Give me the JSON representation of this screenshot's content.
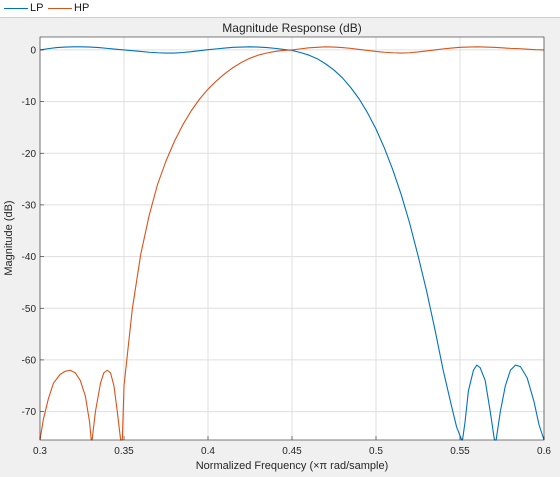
{
  "chart_data": {
    "type": "line",
    "title": "Magnitude Response (dB)",
    "xlabel": "Normalized Frequency (×π rad/sample)",
    "ylabel": "Magnitude (dB)",
    "xlim": [
      0.3,
      0.6
    ],
    "ylim": [
      -75.5,
      2.5
    ],
    "x_ticks": [
      0.3,
      0.35,
      0.4,
      0.45,
      0.5,
      0.55,
      0.6
    ],
    "x_tick_labels": [
      "0.3",
      "0.35",
      "0.4",
      "0.45",
      "0.5",
      "0.55",
      "0.6"
    ],
    "y_ticks": [
      0,
      -10,
      -20,
      -30,
      -40,
      -50,
      -60,
      -70
    ],
    "y_tick_labels": [
      "0",
      "-10",
      "-20",
      "-30",
      "-40",
      "-50",
      "-60",
      "-70"
    ],
    "grid": true,
    "legend": "top-left",
    "series": [
      {
        "name": "LP",
        "color": "#0072bd",
        "points": [
          [
            0.3,
            0.0
          ],
          [
            0.305,
            0.25
          ],
          [
            0.31,
            0.45
          ],
          [
            0.315,
            0.55
          ],
          [
            0.32,
            0.6
          ],
          [
            0.325,
            0.6
          ],
          [
            0.33,
            0.55
          ],
          [
            0.335,
            0.45
          ],
          [
            0.34,
            0.3
          ],
          [
            0.345,
            0.15
          ],
          [
            0.35,
            0.0
          ],
          [
            0.355,
            -0.15
          ],
          [
            0.36,
            -0.3
          ],
          [
            0.365,
            -0.45
          ],
          [
            0.37,
            -0.55
          ],
          [
            0.375,
            -0.6
          ],
          [
            0.38,
            -0.6
          ],
          [
            0.385,
            -0.5
          ],
          [
            0.39,
            -0.35
          ],
          [
            0.395,
            -0.15
          ],
          [
            0.4,
            0.05
          ],
          [
            0.405,
            0.2
          ],
          [
            0.41,
            0.35
          ],
          [
            0.415,
            0.5
          ],
          [
            0.42,
            0.55
          ],
          [
            0.425,
            0.6
          ],
          [
            0.43,
            0.55
          ],
          [
            0.435,
            0.45
          ],
          [
            0.44,
            0.3
          ],
          [
            0.445,
            0.1
          ],
          [
            0.45,
            -0.1
          ],
          [
            0.455,
            -0.5
          ],
          [
            0.46,
            -1.0
          ],
          [
            0.465,
            -1.7
          ],
          [
            0.47,
            -2.7
          ],
          [
            0.475,
            -3.9
          ],
          [
            0.48,
            -5.4
          ],
          [
            0.485,
            -7.3
          ],
          [
            0.49,
            -9.5
          ],
          [
            0.495,
            -12.2
          ],
          [
            0.5,
            -15.3
          ],
          [
            0.505,
            -19.0
          ],
          [
            0.51,
            -23.2
          ],
          [
            0.515,
            -28.0
          ],
          [
            0.52,
            -33.5
          ],
          [
            0.525,
            -39.8
          ],
          [
            0.53,
            -46.5
          ],
          [
            0.535,
            -54.0
          ],
          [
            0.54,
            -62.0
          ],
          [
            0.545,
            -69.0
          ],
          [
            0.548,
            -73.0
          ],
          [
            0.551,
            -75.5
          ],
          [
            0.5515,
            -75.5
          ],
          [
            0.553,
            -72.0
          ],
          [
            0.555,
            -66.0
          ],
          [
            0.558,
            -62.0
          ],
          [
            0.56,
            -61.0
          ],
          [
            0.562,
            -61.5
          ],
          [
            0.565,
            -64.0
          ],
          [
            0.568,
            -70.0
          ],
          [
            0.5705,
            -75.5
          ],
          [
            0.5715,
            -75.5
          ],
          [
            0.574,
            -70.0
          ],
          [
            0.577,
            -65.0
          ],
          [
            0.58,
            -62.0
          ],
          [
            0.583,
            -61.0
          ],
          [
            0.586,
            -61.3
          ],
          [
            0.59,
            -63.5
          ],
          [
            0.594,
            -68.0
          ],
          [
            0.597,
            -72.5
          ],
          [
            0.6,
            -75.5
          ]
        ]
      },
      {
        "name": "HP",
        "color": "#d95319",
        "points": [
          [
            0.3,
            -75.5
          ],
          [
            0.302,
            -71.5
          ],
          [
            0.305,
            -67.5
          ],
          [
            0.308,
            -64.5
          ],
          [
            0.312,
            -62.8
          ],
          [
            0.315,
            -62.2
          ],
          [
            0.318,
            -62.0
          ],
          [
            0.321,
            -62.5
          ],
          [
            0.324,
            -64.0
          ],
          [
            0.327,
            -67.0
          ],
          [
            0.3295,
            -72.0
          ],
          [
            0.3305,
            -75.5
          ],
          [
            0.331,
            -75.5
          ],
          [
            0.333,
            -70.0
          ],
          [
            0.336,
            -64.5
          ],
          [
            0.338,
            -62.5
          ],
          [
            0.34,
            -62.0
          ],
          [
            0.342,
            -62.5
          ],
          [
            0.344,
            -65.0
          ],
          [
            0.346,
            -70.0
          ],
          [
            0.348,
            -75.5
          ],
          [
            0.349,
            -75.5
          ],
          [
            0.35,
            -65.0
          ],
          [
            0.355,
            -50.0
          ],
          [
            0.36,
            -39.5
          ],
          [
            0.365,
            -32.0
          ],
          [
            0.37,
            -26.0
          ],
          [
            0.375,
            -21.5
          ],
          [
            0.38,
            -17.7
          ],
          [
            0.385,
            -14.5
          ],
          [
            0.39,
            -11.8
          ],
          [
            0.395,
            -9.5
          ],
          [
            0.4,
            -7.6
          ],
          [
            0.405,
            -6.0
          ],
          [
            0.41,
            -4.6
          ],
          [
            0.415,
            -3.4
          ],
          [
            0.42,
            -2.4
          ],
          [
            0.425,
            -1.6
          ],
          [
            0.43,
            -1.0
          ],
          [
            0.435,
            -0.6
          ],
          [
            0.44,
            -0.3
          ],
          [
            0.445,
            -0.1
          ],
          [
            0.45,
            0.0
          ],
          [
            0.455,
            0.2
          ],
          [
            0.46,
            0.4
          ],
          [
            0.465,
            0.5
          ],
          [
            0.47,
            0.6
          ],
          [
            0.475,
            0.55
          ],
          [
            0.48,
            0.45
          ],
          [
            0.485,
            0.3
          ],
          [
            0.49,
            0.1
          ],
          [
            0.495,
            -0.1
          ],
          [
            0.5,
            -0.3
          ],
          [
            0.505,
            -0.45
          ],
          [
            0.51,
            -0.55
          ],
          [
            0.515,
            -0.6
          ],
          [
            0.52,
            -0.55
          ],
          [
            0.525,
            -0.4
          ],
          [
            0.53,
            -0.2
          ],
          [
            0.535,
            0.0
          ],
          [
            0.54,
            0.2
          ],
          [
            0.545,
            0.35
          ],
          [
            0.55,
            0.5
          ],
          [
            0.555,
            0.55
          ],
          [
            0.56,
            0.6
          ],
          [
            0.565,
            0.55
          ],
          [
            0.57,
            0.5
          ],
          [
            0.575,
            0.4
          ],
          [
            0.58,
            0.3
          ],
          [
            0.585,
            0.25
          ],
          [
            0.59,
            0.15
          ],
          [
            0.595,
            0.05
          ],
          [
            0.6,
            0.0
          ]
        ]
      }
    ]
  }
}
